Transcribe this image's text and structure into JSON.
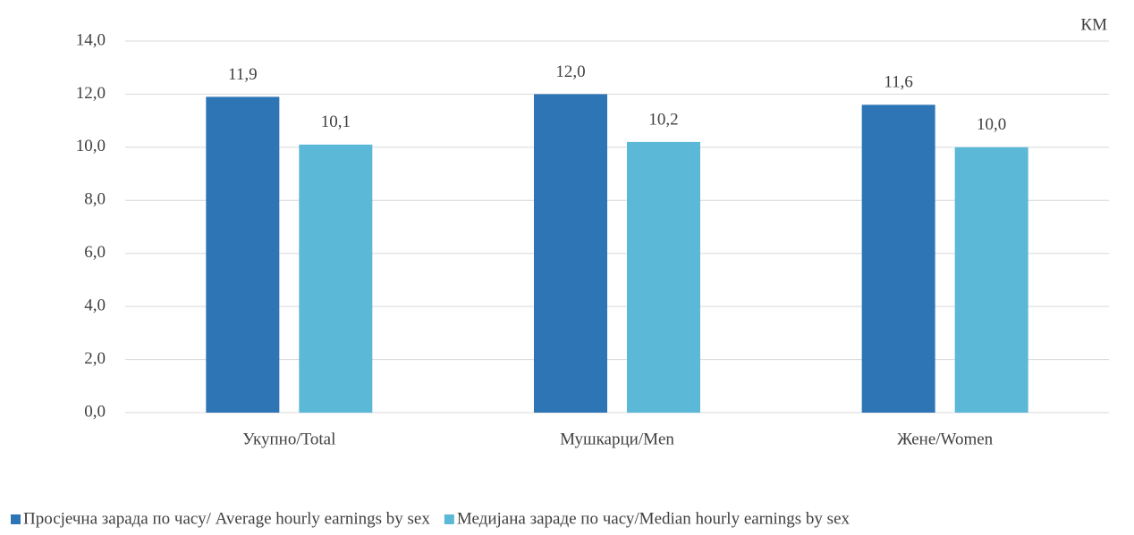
{
  "chart_data": {
    "type": "bar",
    "unit_label": "КМ",
    "categories": [
      "Укупно/Total",
      "Мушкарци/Men",
      "Жене/Women"
    ],
    "series": [
      {
        "name": "Просјечна зарада по часу/ Average hourly earnings by sex",
        "color": "#2e75b6",
        "values": [
          11.9,
          12.0,
          11.6
        ],
        "value_labels": [
          "11,9",
          "12,0",
          "11,6"
        ]
      },
      {
        "name": "Медијана зараде по часу/Median hourly earnings by sex",
        "color": "#5bb8d6",
        "values": [
          10.1,
          10.2,
          10.0
        ],
        "value_labels": [
          "10,1",
          "10,2",
          "10,0"
        ]
      }
    ],
    "ylim": [
      0,
      14
    ],
    "yticks": [
      {
        "value": 0,
        "label": "0,0"
      },
      {
        "value": 2,
        "label": "2,0"
      },
      {
        "value": 4,
        "label": "4,0"
      },
      {
        "value": 6,
        "label": "6,0"
      },
      {
        "value": 8,
        "label": "8,0"
      },
      {
        "value": 10,
        "label": "10,0"
      },
      {
        "value": 12,
        "label": "12,0"
      },
      {
        "value": 14,
        "label": "14,0"
      }
    ],
    "grid": true,
    "legend": "bottom"
  }
}
